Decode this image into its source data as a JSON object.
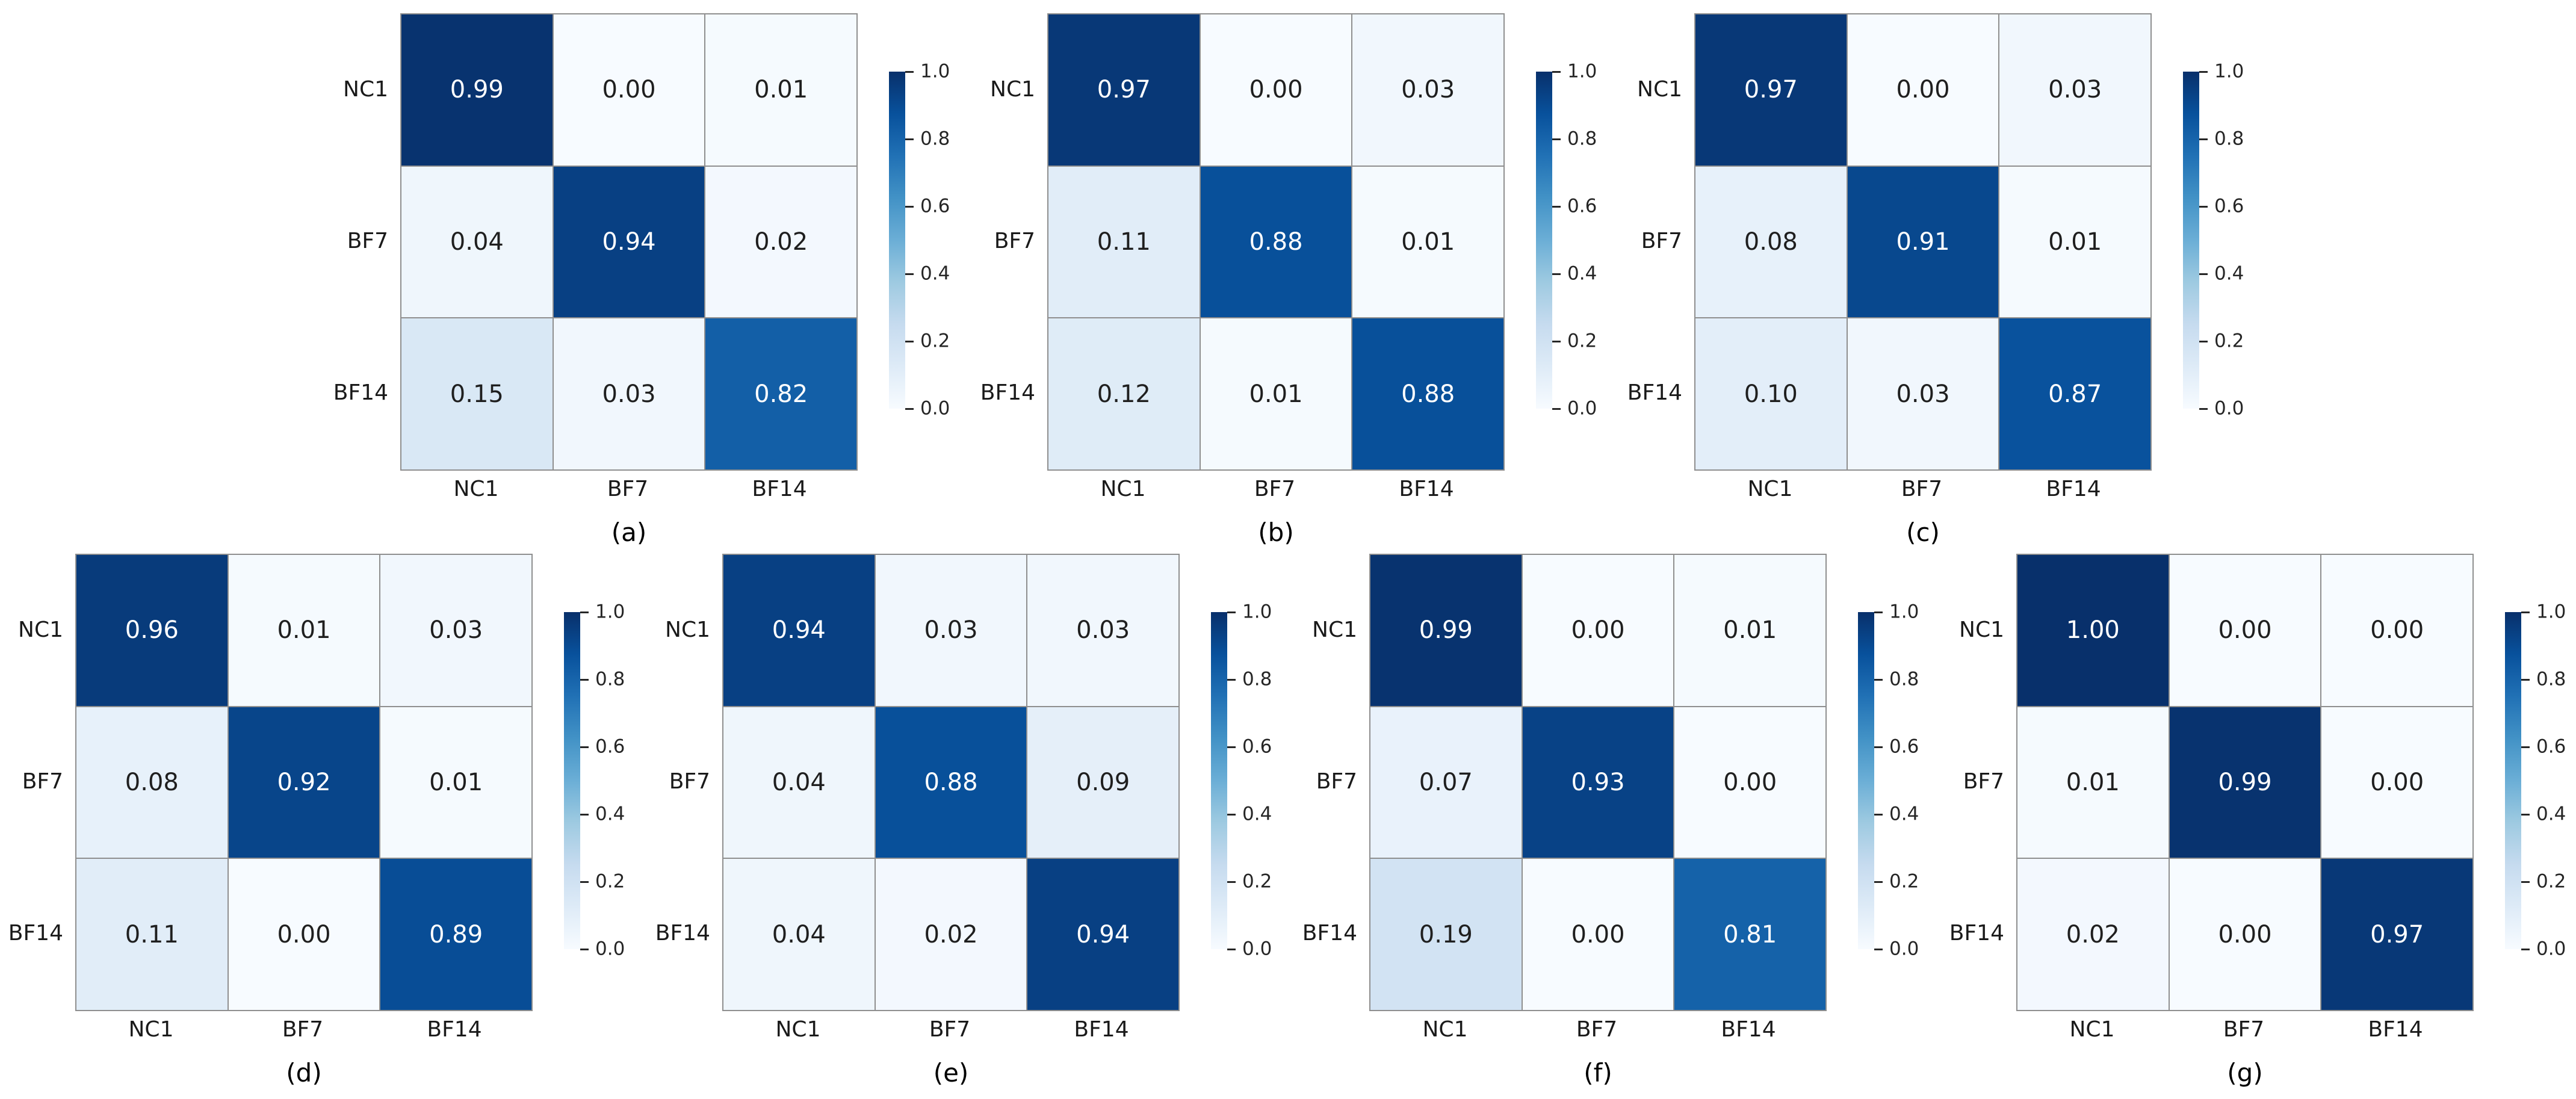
{
  "figure_title": "",
  "classes": [
    "NC1",
    "BF7",
    "BF14"
  ],
  "colorbar": {
    "ticks": [
      "1.0",
      "0.8",
      "0.6",
      "0.4",
      "0.2",
      "0.0"
    ],
    "vmin": 0.0,
    "vmax": 1.0
  },
  "colors": {
    "cmap_name": "Blues",
    "cmap_stops": [
      "#f7fbff",
      "#deebf7",
      "#c6dbef",
      "#9ecae1",
      "#6baed6",
      "#4292c6",
      "#2171b5",
      "#08519c",
      "#08306b"
    ],
    "grid_line": "#8f8f8f",
    "cell_text_dark": "#1f1f1f",
    "cell_text_light": "#ffffff",
    "tick_text": "#262626"
  },
  "chart_data": {
    "type": "heatmap",
    "subtype": "confusion-matrix-grid",
    "shared": {
      "x_categories": [
        "NC1",
        "BF7",
        "BF14"
      ],
      "y_categories": [
        "NC1",
        "BF7",
        "BF14"
      ],
      "vmin": 0.0,
      "vmax": 1.0,
      "cmap": "Blues",
      "colorbar_ticks": [
        "1.0",
        "0.8",
        "0.6",
        "0.4",
        "0.2",
        "0.0"
      ],
      "grid": true,
      "legend_position": "right-colorbar"
    },
    "panels": [
      {
        "caption": "(a)",
        "values": [
          [
            0.99,
            0.0,
            0.01
          ],
          [
            0.04,
            0.94,
            0.02
          ],
          [
            0.15,
            0.03,
            0.82
          ]
        ],
        "labels": [
          [
            "0.99",
            "0.00",
            "0.01"
          ],
          [
            "0.04",
            "0.94",
            "0.02"
          ],
          [
            "0.15",
            "0.03",
            "0.82"
          ]
        ]
      },
      {
        "caption": "(b)",
        "values": [
          [
            0.97,
            0.0,
            0.03
          ],
          [
            0.11,
            0.88,
            0.01
          ],
          [
            0.12,
            0.01,
            0.88
          ]
        ],
        "labels": [
          [
            "0.97",
            "0.00",
            "0.03"
          ],
          [
            "0.11",
            "0.88",
            "0.01"
          ],
          [
            "0.12",
            "0.01",
            "0.88"
          ]
        ]
      },
      {
        "caption": "(c)",
        "values": [
          [
            0.97,
            0.0,
            0.03
          ],
          [
            0.08,
            0.91,
            0.01
          ],
          [
            0.1,
            0.03,
            0.87
          ]
        ],
        "labels": [
          [
            "0.97",
            "0.00",
            "0.03"
          ],
          [
            "0.08",
            "0.91",
            "0.01"
          ],
          [
            "0.10",
            "0.03",
            "0.87"
          ]
        ]
      },
      {
        "caption": "(d)",
        "values": [
          [
            0.96,
            0.01,
            0.03
          ],
          [
            0.08,
            0.92,
            0.01
          ],
          [
            0.11,
            0.0,
            0.89
          ]
        ],
        "labels": [
          [
            "0.96",
            "0.01",
            "0.03"
          ],
          [
            "0.08",
            "0.92",
            "0.01"
          ],
          [
            "0.11",
            "0.00",
            "0.89"
          ]
        ]
      },
      {
        "caption": "(e)",
        "values": [
          [
            0.94,
            0.03,
            0.03
          ],
          [
            0.04,
            0.88,
            0.09
          ],
          [
            0.04,
            0.02,
            0.94
          ]
        ],
        "labels": [
          [
            "0.94",
            "0.03",
            "0.03"
          ],
          [
            "0.04",
            "0.88",
            "0.09"
          ],
          [
            "0.04",
            "0.02",
            "0.94"
          ]
        ]
      },
      {
        "caption": "(f)",
        "values": [
          [
            0.99,
            0.0,
            0.01
          ],
          [
            0.07,
            0.93,
            0.0
          ],
          [
            0.19,
            0.0,
            0.81
          ]
        ],
        "labels": [
          [
            "0.99",
            "0.00",
            "0.01"
          ],
          [
            "0.07",
            "0.93",
            "0.00"
          ],
          [
            "0.19",
            "0.00",
            "0.81"
          ]
        ]
      },
      {
        "caption": "(g)",
        "values": [
          [
            1.0,
            0.0,
            0.0
          ],
          [
            0.01,
            0.99,
            0.0
          ],
          [
            0.02,
            0.0,
            0.97
          ]
        ],
        "labels": [
          [
            "1.00",
            "0.00",
            "0.00"
          ],
          [
            "0.01",
            "0.99",
            "0.00"
          ],
          [
            "0.02",
            "0.00",
            "0.97"
          ]
        ]
      }
    ]
  }
}
